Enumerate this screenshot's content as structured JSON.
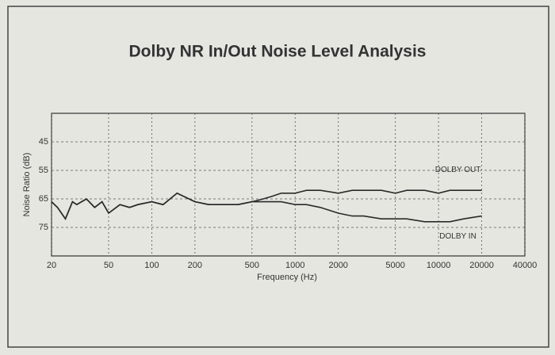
{
  "chart_data": {
    "type": "line",
    "title": "Dolby NR In/Out Noise Level Analysis",
    "xlabel": "Frequency (Hz)",
    "ylabel": "Noise Ratio (dB)",
    "x": [
      20,
      22,
      25,
      28,
      30,
      35,
      40,
      45,
      50,
      60,
      70,
      80,
      100,
      120,
      150,
      200,
      250,
      300,
      400,
      500,
      600,
      700,
      800,
      1000,
      1200,
      1500,
      2000,
      2500,
      3000,
      4000,
      5000,
      6000,
      8000,
      10000,
      12000,
      15000,
      20000
    ],
    "series": [
      {
        "name": "DOLBY OUT",
        "color": "#2a2a2a",
        "values": [
          66,
          68,
          72,
          66,
          67,
          65,
          68,
          66,
          70,
          67,
          68,
          67,
          66,
          67,
          63,
          66,
          67,
          67,
          67,
          66,
          65,
          64,
          63,
          63,
          62,
          62,
          63,
          62,
          62,
          62,
          63,
          62,
          62,
          63,
          62,
          62,
          62
        ]
      },
      {
        "name": "DOLBY IN",
        "color": "#2a2a2a",
        "values": [
          66,
          68,
          72,
          66,
          67,
          65,
          68,
          66,
          70,
          67,
          68,
          67,
          66,
          67,
          63,
          66,
          67,
          67,
          67,
          66,
          66,
          66,
          66,
          67,
          67,
          68,
          70,
          71,
          71,
          72,
          72,
          72,
          73,
          73,
          73,
          72,
          71
        ]
      }
    ],
    "xlim": [
      20,
      40000
    ],
    "xticks": [
      20,
      50,
      100,
      200,
      500,
      1000,
      2000,
      5000,
      10000,
      20000,
      40000
    ],
    "xscale": "log",
    "ylim": [
      35,
      85
    ],
    "yticks": [
      45,
      55,
      65,
      75
    ],
    "y_inverted": true,
    "grid": true
  }
}
